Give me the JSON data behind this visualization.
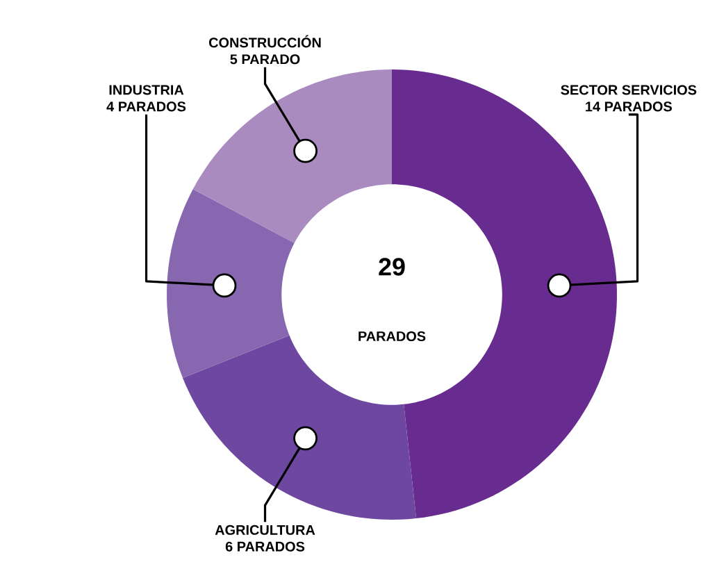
{
  "chart_data": {
    "type": "donut",
    "categories": [
      "SECTOR SERVICIOS",
      "AGRICULTURA",
      "INDUSTRIA",
      "CONSTRUCCIÓN"
    ],
    "values": [
      14,
      6,
      4,
      5
    ],
    "value_labels": [
      "14 PARADOS",
      "6 PARADOS",
      "4 PARADOS",
      "5 PARADO"
    ],
    "colors": [
      "#682c90",
      "#6e48a0",
      "#8767af",
      "#a98bc0"
    ],
    "annotations": [
      "29",
      "PARADOS"
    ]
  }
}
